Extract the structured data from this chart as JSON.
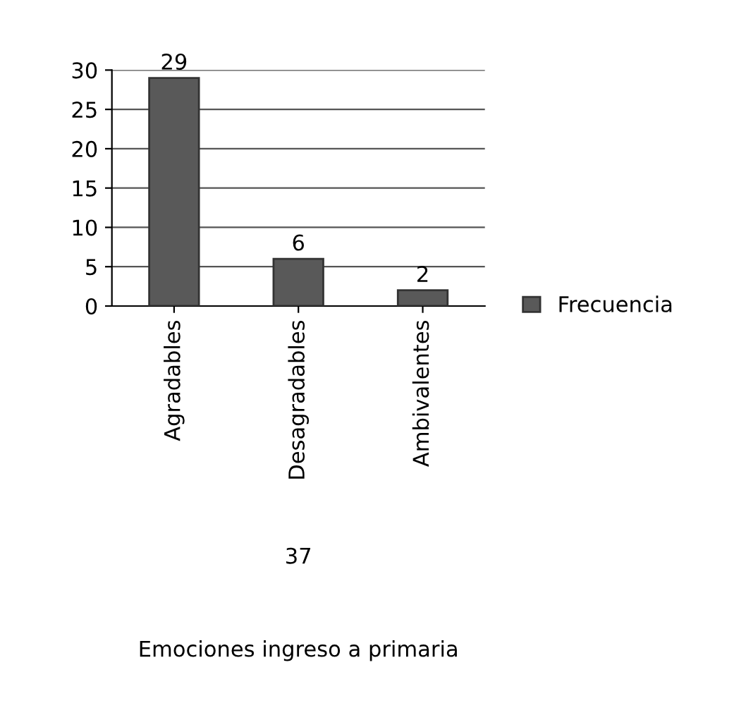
{
  "chart_data": {
    "type": "bar",
    "categories": [
      "Agradables",
      "Desagradables",
      "Ambivalentes"
    ],
    "series": [
      {
        "name": "Frecuencia",
        "color": "#595959",
        "values": [
          29,
          6,
          2
        ]
      }
    ],
    "ylim": [
      0,
      30
    ],
    "yticks": [
      0,
      5,
      10,
      15,
      20,
      25,
      30
    ],
    "grid": "y",
    "legend": "right",
    "data_labels": true,
    "annotations": [
      "37",
      "Emociones ingreso a primaria"
    ]
  }
}
